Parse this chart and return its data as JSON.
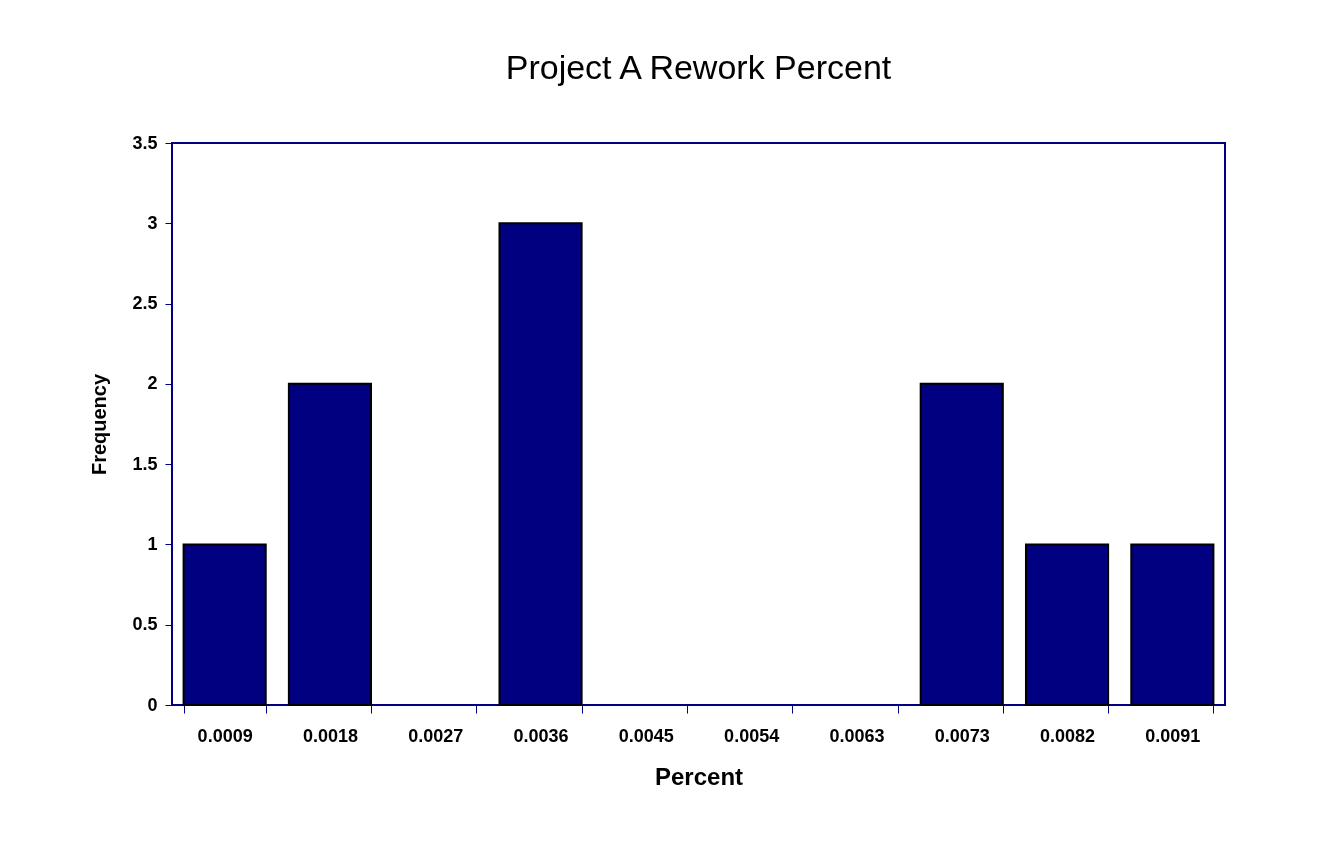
{
  "chart_data": {
    "type": "bar",
    "title": "Project A Rework Percent",
    "xlabel": "Percent",
    "ylabel": "Frequency",
    "categories": [
      "0.0009",
      "0.0018",
      "0.0027",
      "0.0036",
      "0.0045",
      "0.0054",
      "0.0063",
      "0.0073",
      "0.0082",
      "0.0091"
    ],
    "values": [
      1,
      2,
      0,
      3,
      0,
      0,
      0,
      2,
      1,
      1
    ],
    "color": "#000080",
    "ylim": [
      0,
      3.5
    ],
    "yticks": [
      0,
      0.5,
      1,
      1.5,
      2,
      2.5,
      3,
      3.5
    ],
    "grid": false
  }
}
